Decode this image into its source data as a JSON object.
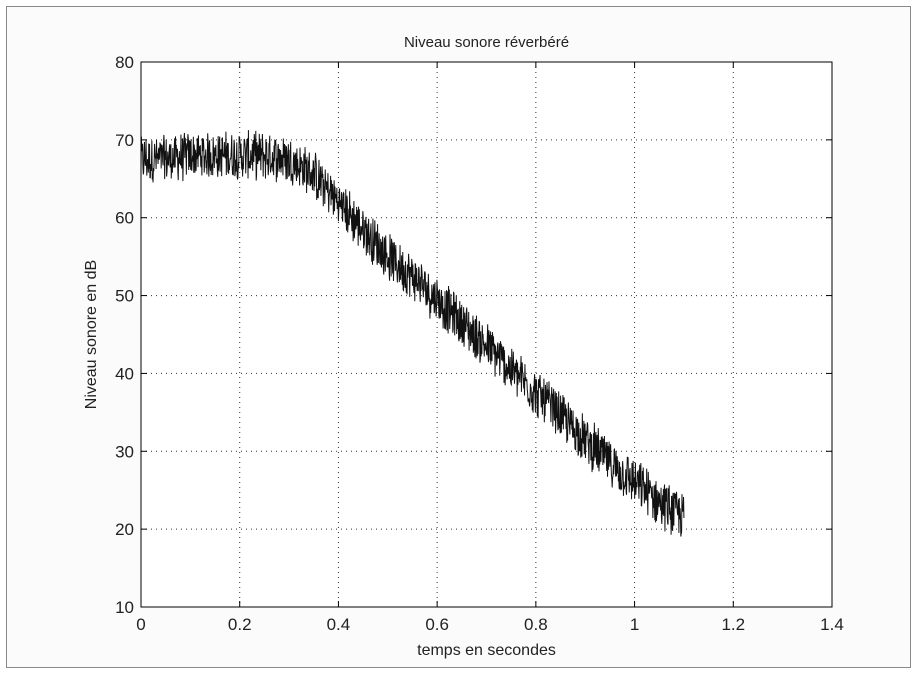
{
  "chart_data": {
    "type": "line",
    "title": "Niveau sonore réverbéré",
    "xlabel": "temps en secondes",
    "ylabel": "Niveau sonore en dB",
    "xlim": [
      0,
      1.4
    ],
    "ylim": [
      10,
      80
    ],
    "x_ticks": [
      "0",
      "0.2",
      "0.4",
      "0.6",
      "0.8",
      "1",
      "1.2",
      "1.4"
    ],
    "y_ticks": [
      "10",
      "20",
      "30",
      "40",
      "50",
      "60",
      "70",
      "80"
    ],
    "grid": true,
    "grid_style": "dotted",
    "line_color": "#111111",
    "series": [
      {
        "x": [
          0,
          0.05,
          0.1,
          0.15,
          0.2,
          0.25,
          0.3,
          0.35,
          0.4,
          0.45,
          0.5,
          0.55,
          0.6,
          0.65,
          0.7,
          0.75,
          0.8,
          0.85,
          0.9,
          0.95,
          1.0,
          1.05,
          1.1
        ],
        "y": [
          67.5,
          67.5,
          68,
          68,
          68,
          68,
          67.5,
          65.5,
          62,
          58.5,
          55,
          52.5,
          49.5,
          46.5,
          43.5,
          40.5,
          37.5,
          34.5,
          31.5,
          28.5,
          26,
          23.5,
          21.5
        ]
      }
    ]
  }
}
